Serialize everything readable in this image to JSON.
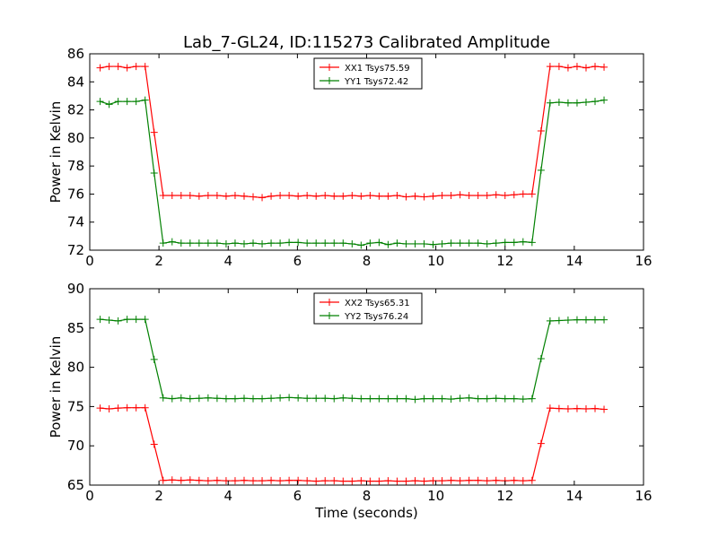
{
  "chart_data": [
    {
      "type": "line",
      "title": "Lab_7-GL24, ID:115273 Calibrated Amplitude",
      "xlabel": "",
      "ylabel": "Power in Kelvin",
      "xlim": [
        0,
        16
      ],
      "ylim": [
        72,
        86
      ],
      "xticks": [
        0,
        2,
        4,
        6,
        8,
        10,
        12,
        14,
        16
      ],
      "yticks": [
        72,
        74,
        76,
        78,
        80,
        82,
        84,
        86
      ],
      "grid": false,
      "legend_position": "top-center",
      "x": [
        0.3,
        0.56,
        0.82,
        1.08,
        1.34,
        1.6,
        1.86,
        2.12,
        2.38,
        2.64,
        2.9,
        3.16,
        3.42,
        3.68,
        3.94,
        4.2,
        4.46,
        4.72,
        4.98,
        5.24,
        5.5,
        5.76,
        6.02,
        6.28,
        6.54,
        6.8,
        7.06,
        7.32,
        7.58,
        7.84,
        8.1,
        8.36,
        8.62,
        8.88,
        9.14,
        9.4,
        9.66,
        9.92,
        10.18,
        10.44,
        10.7,
        10.96,
        11.22,
        11.48,
        11.74,
        12.0,
        12.26,
        12.52,
        12.78,
        13.04,
        13.3,
        13.56,
        13.82,
        14.08,
        14.34,
        14.6,
        14.86
      ],
      "series": [
        {
          "name": "XX1 Tsys75.59",
          "color": "#ff0000",
          "values": [
            85.0,
            85.1,
            85.1,
            85.0,
            85.1,
            85.1,
            80.4,
            75.9,
            75.9,
            75.9,
            75.9,
            75.85,
            75.9,
            75.9,
            75.85,
            75.9,
            75.85,
            75.8,
            75.75,
            75.85,
            75.9,
            75.9,
            75.85,
            75.9,
            75.85,
            75.9,
            75.85,
            75.85,
            75.9,
            75.85,
            75.9,
            75.85,
            75.85,
            75.9,
            75.8,
            75.85,
            75.8,
            75.85,
            75.9,
            75.9,
            75.95,
            75.9,
            75.9,
            75.9,
            75.95,
            75.9,
            75.95,
            76.0,
            76.0,
            80.5,
            85.1,
            85.1,
            85.0,
            85.1,
            85.0,
            85.1,
            85.05
          ]
        },
        {
          "name": "YY1 Tsys72.42",
          "color": "#008000",
          "values": [
            82.6,
            82.4,
            82.6,
            82.6,
            82.6,
            82.7,
            77.5,
            72.5,
            72.6,
            72.5,
            72.5,
            72.5,
            72.5,
            72.5,
            72.45,
            72.5,
            72.45,
            72.5,
            72.45,
            72.5,
            72.5,
            72.55,
            72.55,
            72.5,
            72.5,
            72.5,
            72.5,
            72.5,
            72.45,
            72.35,
            72.5,
            72.55,
            72.4,
            72.5,
            72.45,
            72.45,
            72.45,
            72.4,
            72.45,
            72.5,
            72.5,
            72.5,
            72.5,
            72.45,
            72.5,
            72.55,
            72.55,
            72.6,
            72.55,
            77.7,
            82.5,
            82.55,
            82.5,
            82.5,
            82.55,
            82.6,
            82.7
          ]
        }
      ]
    },
    {
      "type": "line",
      "title": "",
      "xlabel": "Time (seconds)",
      "ylabel": "Power in Kelvin",
      "xlim": [
        0,
        16
      ],
      "ylim": [
        65,
        90
      ],
      "xticks": [
        0,
        2,
        4,
        6,
        8,
        10,
        12,
        14,
        16
      ],
      "yticks": [
        65,
        70,
        75,
        80,
        85,
        90
      ],
      "grid": false,
      "legend_position": "top-center",
      "x": [
        0.3,
        0.56,
        0.82,
        1.08,
        1.34,
        1.6,
        1.86,
        2.12,
        2.38,
        2.64,
        2.9,
        3.16,
        3.42,
        3.68,
        3.94,
        4.2,
        4.46,
        4.72,
        4.98,
        5.24,
        5.5,
        5.76,
        6.02,
        6.28,
        6.54,
        6.8,
        7.06,
        7.32,
        7.58,
        7.84,
        8.1,
        8.36,
        8.62,
        8.88,
        9.14,
        9.4,
        9.66,
        9.92,
        10.18,
        10.44,
        10.7,
        10.96,
        11.22,
        11.48,
        11.74,
        12.0,
        12.26,
        12.52,
        12.78,
        13.04,
        13.3,
        13.56,
        13.82,
        14.08,
        14.34,
        14.6,
        14.86
      ],
      "series": [
        {
          "name": "XX2 Tsys65.31",
          "color": "#ff0000",
          "values": [
            74.8,
            74.7,
            74.8,
            74.85,
            74.85,
            74.85,
            70.2,
            65.6,
            65.65,
            65.6,
            65.65,
            65.6,
            65.55,
            65.6,
            65.55,
            65.55,
            65.6,
            65.55,
            65.55,
            65.6,
            65.55,
            65.6,
            65.6,
            65.55,
            65.5,
            65.55,
            65.55,
            65.5,
            65.5,
            65.55,
            65.5,
            65.5,
            65.55,
            65.5,
            65.5,
            65.55,
            65.5,
            65.55,
            65.55,
            65.6,
            65.55,
            65.6,
            65.6,
            65.55,
            65.6,
            65.55,
            65.6,
            65.55,
            65.6,
            70.3,
            74.8,
            74.75,
            74.7,
            74.75,
            74.7,
            74.75,
            74.65
          ]
        },
        {
          "name": "YY2 Tsys76.24",
          "color": "#008000",
          "values": [
            86.1,
            86.0,
            85.9,
            86.1,
            86.1,
            86.1,
            81.0,
            76.1,
            76.0,
            76.1,
            76.0,
            76.05,
            76.1,
            76.05,
            76.0,
            76.0,
            76.05,
            76.0,
            76.0,
            76.05,
            76.1,
            76.15,
            76.1,
            76.05,
            76.05,
            76.05,
            76.0,
            76.1,
            76.05,
            76.0,
            76.0,
            76.0,
            76.0,
            76.0,
            76.0,
            75.9,
            76.0,
            76.0,
            76.0,
            75.95,
            76.05,
            76.1,
            76.0,
            76.0,
            76.05,
            76.0,
            76.0,
            75.95,
            76.0,
            81.1,
            85.9,
            85.95,
            86.0,
            86.05,
            86.05,
            86.05,
            86.05
          ]
        }
      ]
    }
  ]
}
